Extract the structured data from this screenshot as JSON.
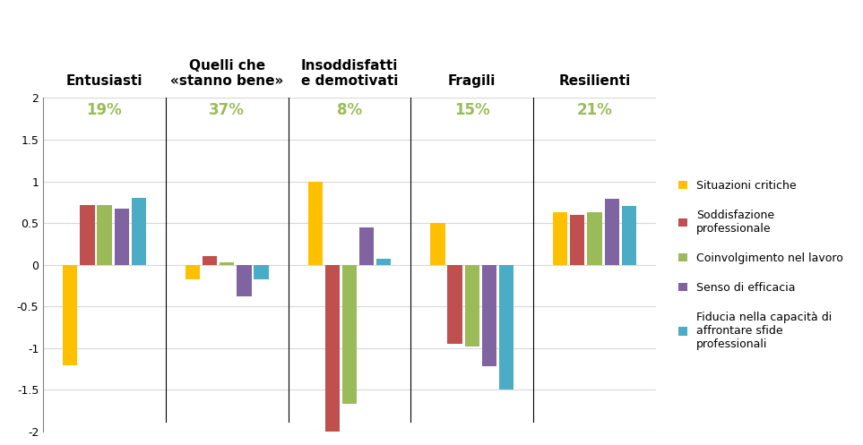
{
  "chart_data": {
    "type": "bar",
    "categories": [
      "Entusiasti",
      "Quelli che\n«stanno bene»",
      "Insoddisfatti\ne demotivati",
      "Fragili",
      "Resilienti"
    ],
    "annotations": [
      "19%",
      "37%",
      "8%",
      "15%",
      "21%"
    ],
    "series": [
      {
        "name": "Situazioni critiche",
        "color": "#FFC000",
        "values": [
          -1.2,
          -0.18,
          1.0,
          0.5,
          0.63
        ]
      },
      {
        "name": "Soddisfazione professionale",
        "color": "#C0504D",
        "values": [
          0.72,
          0.1,
          -2.0,
          -0.95,
          0.6
        ]
      },
      {
        "name": "Coinvolgimento nel lavoro",
        "color": "#9BBB59",
        "values": [
          0.72,
          0.03,
          -1.67,
          -0.98,
          0.63
        ]
      },
      {
        "name": "Senso di efficacia",
        "color": "#8064A2",
        "values": [
          0.67,
          -0.38,
          0.45,
          -1.22,
          0.79
        ]
      },
      {
        "name": "Fiducia nella capacità di affrontare sfide professionali",
        "color": "#4BACC6",
        "values": [
          0.8,
          -0.18,
          0.07,
          -1.5,
          0.7
        ]
      }
    ],
    "ylim": [
      -2,
      2
    ],
    "yticks": [
      -2,
      -1.5,
      -1,
      -0.5,
      0,
      0.5,
      1,
      1.5,
      2
    ],
    "grid": true,
    "legend": "right"
  }
}
